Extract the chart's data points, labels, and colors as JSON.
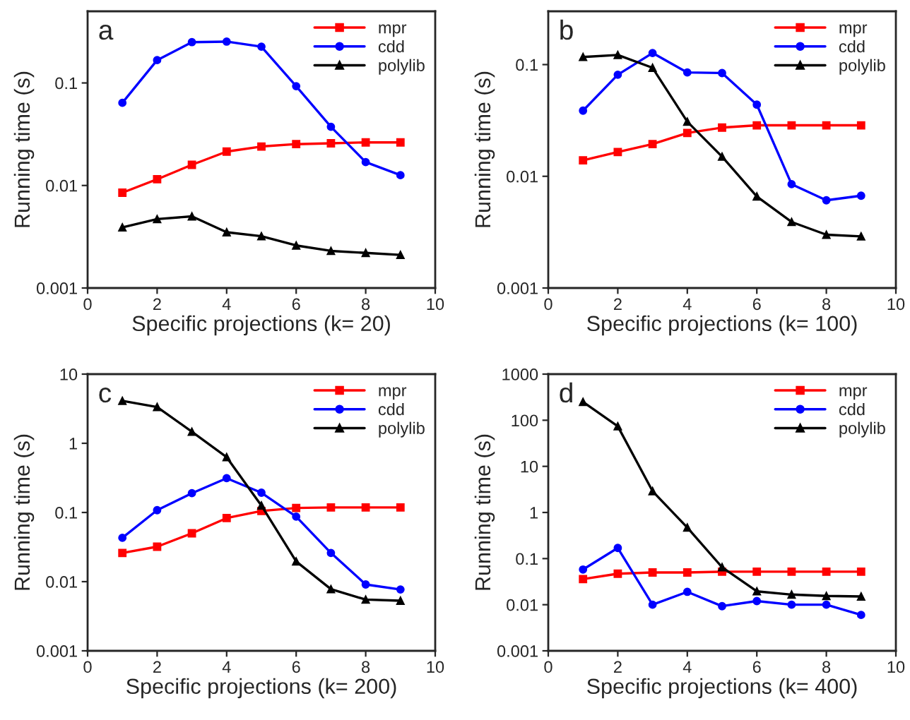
{
  "chart_data": [
    {
      "type": "line",
      "annotations": [
        "a"
      ],
      "xlabel": "Specific projections (k= 20)",
      "ylabel": "Running time (s)",
      "log": "y",
      "xlim": [
        0,
        10
      ],
      "ylim": [
        0.001,
        0.5
      ],
      "xticks": [
        0,
        2,
        4,
        6,
        8,
        10
      ],
      "yticks": [
        0.001,
        0.01,
        0.1
      ],
      "legend": "top right",
      "grid": false,
      "line_style": "solid",
      "x": [
        1,
        2,
        3,
        4,
        5,
        6,
        7,
        8,
        9
      ],
      "series": [
        {
          "name": "mpr",
          "color": "#ff0000",
          "marker": "square",
          "values": [
            0.0085,
            0.0115,
            0.0159,
            0.0214,
            0.024,
            0.0253,
            0.0258,
            0.0263,
            0.0263
          ]
        },
        {
          "name": "cdd",
          "color": "#0000ff",
          "marker": "circle",
          "values": [
            0.064,
            0.167,
            0.25,
            0.253,
            0.226,
            0.093,
            0.0374,
            0.0169,
            0.0126
          ]
        },
        {
          "name": "polylib",
          "color": "#000000",
          "marker": "triangle",
          "values": [
            0.0039,
            0.0047,
            0.005,
            0.0035,
            0.0032,
            0.0026,
            0.0023,
            0.0022,
            0.0021
          ]
        }
      ]
    },
    {
      "type": "line",
      "annotations": [
        "b"
      ],
      "xlabel": "Specific projections (k= 100)",
      "ylabel": "Running time (s)",
      "log": "y",
      "xlim": [
        0,
        10
      ],
      "ylim": [
        0.001,
        0.3
      ],
      "xticks": [
        0,
        2,
        4,
        6,
        8,
        10
      ],
      "yticks": [
        0.001,
        0.01,
        0.1
      ],
      "legend": "top right",
      "grid": false,
      "line_style": "solid",
      "x": [
        1,
        2,
        3,
        4,
        5,
        6,
        7,
        8,
        9
      ],
      "series": [
        {
          "name": "mpr",
          "color": "#ff0000",
          "marker": "square",
          "values": [
            0.0139,
            0.0165,
            0.0194,
            0.0244,
            0.0273,
            0.0286,
            0.0286,
            0.0286,
            0.0286
          ]
        },
        {
          "name": "cdd",
          "color": "#0000ff",
          "marker": "circle",
          "values": [
            0.0387,
            0.0812,
            0.127,
            0.085,
            0.084,
            0.0438,
            0.0085,
            0.0061,
            0.0067
          ]
        },
        {
          "name": "polylib",
          "color": "#000000",
          "marker": "triangle",
          "values": [
            0.117,
            0.122,
            0.0936,
            0.0308,
            0.015,
            0.0066,
            0.0039,
            0.003,
            0.0029
          ]
        }
      ]
    },
    {
      "type": "line",
      "annotations": [
        "c"
      ],
      "xlabel": "Specific projections (k= 200)",
      "ylabel": "Running time (s)",
      "log": "y",
      "xlim": [
        0,
        10
      ],
      "ylim": [
        0.001,
        10
      ],
      "xticks": [
        0,
        2,
        4,
        6,
        8,
        10
      ],
      "yticks": [
        0.001,
        0.01,
        0.1,
        1,
        10
      ],
      "legend": "top right",
      "grid": false,
      "line_style": "solid",
      "x": [
        1,
        2,
        3,
        4,
        5,
        6,
        7,
        8,
        9
      ],
      "series": [
        {
          "name": "mpr",
          "color": "#ff0000",
          "marker": "square",
          "values": [
            0.026,
            0.032,
            0.05,
            0.083,
            0.105,
            0.116,
            0.118,
            0.118,
            0.118
          ]
        },
        {
          "name": "cdd",
          "color": "#0000ff",
          "marker": "circle",
          "values": [
            0.043,
            0.108,
            0.19,
            0.313,
            0.193,
            0.087,
            0.026,
            0.0091,
            0.0077
          ]
        },
        {
          "name": "polylib",
          "color": "#000000",
          "marker": "triangle",
          "values": [
            4.1,
            3.35,
            1.47,
            0.63,
            0.126,
            0.0196,
            0.0078,
            0.0055,
            0.0053
          ]
        }
      ]
    },
    {
      "type": "line",
      "annotations": [
        "d"
      ],
      "xlabel": "Specific projections (k= 400)",
      "ylabel": "Running time (s)",
      "log": "y",
      "xlim": [
        0,
        10
      ],
      "ylim": [
        0.001,
        1000
      ],
      "xticks": [
        0,
        2,
        4,
        6,
        8,
        10
      ],
      "yticks": [
        0.001,
        0.01,
        0.1,
        1,
        10,
        100,
        1000
      ],
      "legend": "top right",
      "grid": false,
      "line_style": "solid",
      "x": [
        1,
        2,
        3,
        4,
        5,
        6,
        7,
        8,
        9
      ],
      "series": [
        {
          "name": "mpr",
          "color": "#ff0000",
          "marker": "square",
          "values": [
            0.036,
            0.047,
            0.05,
            0.05,
            0.052,
            0.052,
            0.052,
            0.052,
            0.052
          ]
        },
        {
          "name": "cdd",
          "color": "#0000ff",
          "marker": "circle",
          "values": [
            0.058,
            0.17,
            0.01,
            0.019,
            0.0093,
            0.012,
            0.01,
            0.01,
            0.006
          ]
        },
        {
          "name": "polylib",
          "color": "#000000",
          "marker": "triangle",
          "values": [
            250,
            74,
            2.9,
            0.47,
            0.065,
            0.0195,
            0.0166,
            0.0155,
            0.0151
          ]
        }
      ]
    }
  ]
}
